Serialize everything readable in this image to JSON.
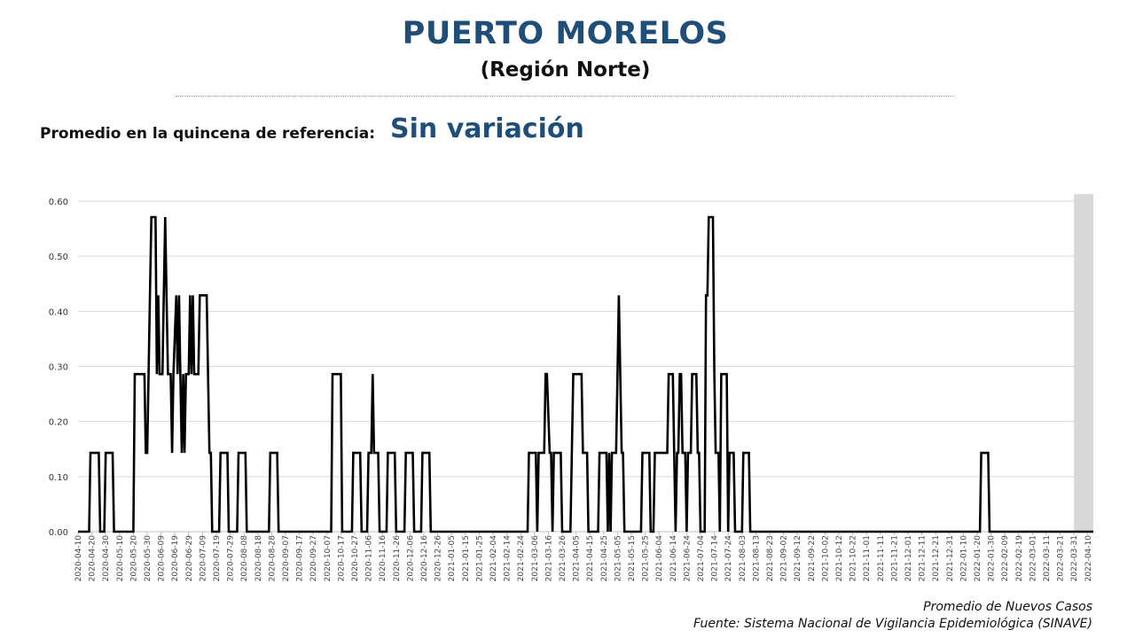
{
  "header": {
    "title": "PUERTO MORELOS",
    "subtitle": "(Región Norte)",
    "reference_label": "Promedio en la quincena de referencia:",
    "reference_value": "Sin variación"
  },
  "footer": {
    "series_label": "Promedio de Nuevos Casos",
    "source": "Fuente: Sistema Nacional de Vigilancia Epidemiológica (SINAVE)"
  },
  "colors": {
    "title": "#1f4e79",
    "line": "#000000",
    "grid": "#d9d9d9",
    "shaded_region": "#d9d9d9"
  },
  "chart_data": {
    "type": "line",
    "title": "",
    "xlabel": "",
    "ylabel": "",
    "ylim": [
      0,
      0.6
    ],
    "y_ticks": [
      "0.00",
      "0.10",
      "0.20",
      "0.30",
      "0.40",
      "0.50",
      "0.60"
    ],
    "x_range": [
      "2020-04-10",
      "2022-04-14"
    ],
    "x_ticks": [
      "2020-04-10",
      "2020-04-20",
      "2020-04-30",
      "2020-05-10",
      "2020-05-20",
      "2020-05-30",
      "2020-06-09",
      "2020-06-19",
      "2020-06-29",
      "2020-07-09",
      "2020-07-19",
      "2020-07-29",
      "2020-08-08",
      "2020-08-18",
      "2020-08-28",
      "2020-09-07",
      "2020-09-17",
      "2020-09-27",
      "2020-10-07",
      "2020-10-17",
      "2020-10-27",
      "2020-11-06",
      "2020-11-16",
      "2020-11-26",
      "2020-12-06",
      "2020-12-16",
      "2020-12-26",
      "2021-01-05",
      "2021-01-15",
      "2021-01-25",
      "2021-02-04",
      "2021-02-14",
      "2021-02-24",
      "2021-03-06",
      "2021-03-16",
      "2021-03-26",
      "2021-04-05",
      "2021-04-15",
      "2021-04-25",
      "2021-05-05",
      "2021-05-15",
      "2021-05-25",
      "2021-06-04",
      "2021-06-14",
      "2021-06-24",
      "2021-07-04",
      "2021-07-14",
      "2021-07-24",
      "2021-08-03",
      "2021-08-13",
      "2021-08-23",
      "2021-09-02",
      "2021-09-12",
      "2021-09-22",
      "2021-10-02",
      "2021-10-12",
      "2021-10-22",
      "2021-11-01",
      "2021-11-11",
      "2021-11-21",
      "2021-12-01",
      "2021-12-11",
      "2021-12-21",
      "2021-12-31",
      "2022-01-10",
      "2022-01-20",
      "2022-01-30",
      "2022-02-09",
      "2022-02-19",
      "2022-03-01",
      "2022-03-11",
      "2022-03-21",
      "2022-03-31",
      "2022-04-10"
    ],
    "grid": true,
    "legend": "none",
    "shaded_range": [
      "2022-03-31",
      "2022-04-14"
    ],
    "series": [
      {
        "name": "Promedio de Nuevos Casos",
        "points": [
          [
            "2020-04-10",
            0
          ],
          [
            "2020-04-18",
            0
          ],
          [
            "2020-04-19",
            0.143
          ],
          [
            "2020-04-25",
            0.143
          ],
          [
            "2020-04-26",
            0
          ],
          [
            "2020-04-29",
            0
          ],
          [
            "2020-04-30",
            0.143
          ],
          [
            "2020-05-05",
            0.143
          ],
          [
            "2020-05-06",
            0
          ],
          [
            "2020-05-20",
            0
          ],
          [
            "2020-05-21",
            0.286
          ],
          [
            "2020-05-28",
            0.286
          ],
          [
            "2020-05-29",
            0.143
          ],
          [
            "2020-05-30",
            0.143
          ],
          [
            "2020-06-01",
            0.429
          ],
          [
            "2020-06-02",
            0.571
          ],
          [
            "2020-06-05",
            0.571
          ],
          [
            "2020-06-06",
            0.286
          ],
          [
            "2020-06-07",
            0.429
          ],
          [
            "2020-06-08",
            0.286
          ],
          [
            "2020-06-10",
            0.286
          ],
          [
            "2020-06-11",
            0.429
          ],
          [
            "2020-06-12",
            0.571
          ],
          [
            "2020-06-13",
            0.429
          ],
          [
            "2020-06-14",
            0.286
          ],
          [
            "2020-06-16",
            0.286
          ],
          [
            "2020-06-17",
            0.143
          ],
          [
            "2020-06-18",
            0.286
          ],
          [
            "2020-06-20",
            0.429
          ],
          [
            "2020-06-21",
            0.286
          ],
          [
            "2020-06-22",
            0.429
          ],
          [
            "2020-06-23",
            0.286
          ],
          [
            "2020-06-24",
            0.143
          ],
          [
            "2020-06-25",
            0.286
          ],
          [
            "2020-06-26",
            0.143
          ],
          [
            "2020-06-27",
            0.286
          ],
          [
            "2020-06-29",
            0.286
          ],
          [
            "2020-06-30",
            0.429
          ],
          [
            "2020-07-01",
            0.286
          ],
          [
            "2020-07-02",
            0.429
          ],
          [
            "2020-07-03",
            0.286
          ],
          [
            "2020-07-06",
            0.286
          ],
          [
            "2020-07-07",
            0.429
          ],
          [
            "2020-07-12",
            0.429
          ],
          [
            "2020-07-13",
            0.286
          ],
          [
            "2020-07-14",
            0.143
          ],
          [
            "2020-07-15",
            0.143
          ],
          [
            "2020-07-16",
            0
          ],
          [
            "2020-07-21",
            0
          ],
          [
            "2020-07-22",
            0.143
          ],
          [
            "2020-07-27",
            0.143
          ],
          [
            "2020-07-28",
            0
          ],
          [
            "2020-08-03",
            0
          ],
          [
            "2020-08-04",
            0.143
          ],
          [
            "2020-08-09",
            0.143
          ],
          [
            "2020-08-10",
            0
          ],
          [
            "2020-08-26",
            0
          ],
          [
            "2020-08-27",
            0.143
          ],
          [
            "2020-09-01",
            0.143
          ],
          [
            "2020-09-02",
            0
          ],
          [
            "2020-10-10",
            0
          ],
          [
            "2020-10-11",
            0.286
          ],
          [
            "2020-10-17",
            0.286
          ],
          [
            "2020-10-18",
            0
          ],
          [
            "2020-10-25",
            0
          ],
          [
            "2020-10-26",
            0.143
          ],
          [
            "2020-10-31",
            0.143
          ],
          [
            "2020-11-01",
            0
          ],
          [
            "2020-11-05",
            0
          ],
          [
            "2020-11-06",
            0.143
          ],
          [
            "2020-11-08",
            0.143
          ],
          [
            "2020-11-09",
            0.286
          ],
          [
            "2020-11-10",
            0.143
          ],
          [
            "2020-11-13",
            0.143
          ],
          [
            "2020-11-14",
            0
          ],
          [
            "2020-11-19",
            0
          ],
          [
            "2020-11-20",
            0.143
          ],
          [
            "2020-11-25",
            0.143
          ],
          [
            "2020-11-26",
            0
          ],
          [
            "2020-12-02",
            0
          ],
          [
            "2020-12-03",
            0.143
          ],
          [
            "2020-12-08",
            0.143
          ],
          [
            "2020-12-09",
            0
          ],
          [
            "2020-12-14",
            0
          ],
          [
            "2020-12-15",
            0.143
          ],
          [
            "2020-12-20",
            0.143
          ],
          [
            "2020-12-21",
            0
          ],
          [
            "2021-03-01",
            0
          ],
          [
            "2021-03-02",
            0.143
          ],
          [
            "2021-03-07",
            0.143
          ],
          [
            "2021-03-08",
            0
          ],
          [
            "2021-03-09",
            0.143
          ],
          [
            "2021-03-13",
            0.143
          ],
          [
            "2021-03-14",
            0.286
          ],
          [
            "2021-03-15",
            0.286
          ],
          [
            "2021-03-17",
            0.143
          ],
          [
            "2021-03-18",
            0.143
          ],
          [
            "2021-03-19",
            0
          ],
          [
            "2021-03-20",
            0.143
          ],
          [
            "2021-03-25",
            0.143
          ],
          [
            "2021-03-26",
            0
          ],
          [
            "2021-04-01",
            0
          ],
          [
            "2021-04-02",
            0.143
          ],
          [
            "2021-04-03",
            0.286
          ],
          [
            "2021-04-09",
            0.286
          ],
          [
            "2021-04-10",
            0.143
          ],
          [
            "2021-04-13",
            0.143
          ],
          [
            "2021-04-14",
            0
          ],
          [
            "2021-04-21",
            0
          ],
          [
            "2021-04-22",
            0.143
          ],
          [
            "2021-04-27",
            0.143
          ],
          [
            "2021-04-28",
            0
          ],
          [
            "2021-04-29",
            0.143
          ],
          [
            "2021-04-30",
            0
          ],
          [
            "2021-05-01",
            0.143
          ],
          [
            "2021-05-04",
            0.143
          ],
          [
            "2021-05-05",
            0.286
          ],
          [
            "2021-05-06",
            0.429
          ],
          [
            "2021-05-07",
            0.286
          ],
          [
            "2021-05-08",
            0.143
          ],
          [
            "2021-05-09",
            0.143
          ],
          [
            "2021-05-10",
            0
          ],
          [
            "2021-05-22",
            0
          ],
          [
            "2021-05-23",
            0.143
          ],
          [
            "2021-05-28",
            0.143
          ],
          [
            "2021-05-29",
            0
          ],
          [
            "2021-05-31",
            0
          ],
          [
            "2021-06-01",
            0.143
          ],
          [
            "2021-06-10",
            0.143
          ],
          [
            "2021-06-11",
            0.286
          ],
          [
            "2021-06-14",
            0.286
          ],
          [
            "2021-06-15",
            0.143
          ],
          [
            "2021-06-16",
            0
          ],
          [
            "2021-06-17",
            0.143
          ],
          [
            "2021-06-18",
            0.143
          ],
          [
            "2021-06-19",
            0.286
          ],
          [
            "2021-06-20",
            0.286
          ],
          [
            "2021-06-21",
            0.143
          ],
          [
            "2021-06-23",
            0.143
          ],
          [
            "2021-06-24",
            0
          ],
          [
            "2021-06-25",
            0.143
          ],
          [
            "2021-06-27",
            0.143
          ],
          [
            "2021-06-28",
            0.286
          ],
          [
            "2021-07-01",
            0.286
          ],
          [
            "2021-07-02",
            0.143
          ],
          [
            "2021-07-03",
            0.143
          ],
          [
            "2021-07-04",
            0
          ],
          [
            "2021-07-07",
            0
          ],
          [
            "2021-07-08",
            0.429
          ],
          [
            "2021-07-09",
            0.429
          ],
          [
            "2021-07-10",
            0.571
          ],
          [
            "2021-07-13",
            0.571
          ],
          [
            "2021-07-14",
            0.286
          ],
          [
            "2021-07-15",
            0.143
          ],
          [
            "2021-07-17",
            0.143
          ],
          [
            "2021-07-18",
            0
          ],
          [
            "2021-07-19",
            0.286
          ],
          [
            "2021-07-23",
            0.286
          ],
          [
            "2021-07-24",
            0
          ],
          [
            "2021-07-25",
            0.143
          ],
          [
            "2021-07-28",
            0.143
          ],
          [
            "2021-07-29",
            0
          ],
          [
            "2021-08-03",
            0
          ],
          [
            "2021-08-04",
            0.143
          ],
          [
            "2021-08-08",
            0.143
          ],
          [
            "2021-08-09",
            0
          ],
          [
            "2021-08-24",
            0
          ],
          [
            "2021-08-25",
            0
          ],
          [
            "2022-01-22",
            0
          ],
          [
            "2022-01-23",
            0.143
          ],
          [
            "2022-01-28",
            0.143
          ],
          [
            "2022-01-29",
            0
          ],
          [
            "2022-04-14",
            0
          ]
        ]
      }
    ]
  }
}
